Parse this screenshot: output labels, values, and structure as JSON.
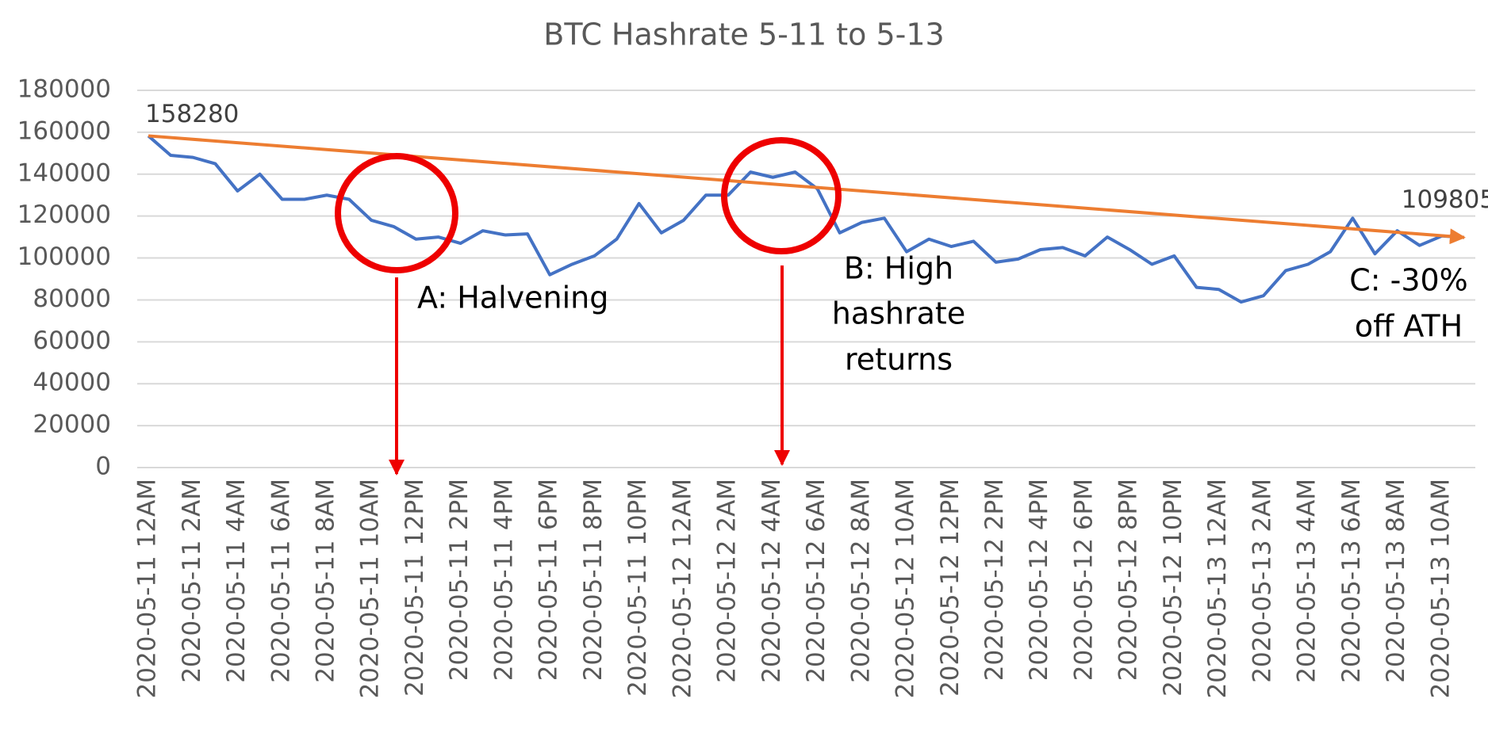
{
  "chart_data": {
    "type": "line",
    "title": "BTC Hashrate 5-11 to 5-13",
    "categories": [
      "2020-05-11 12AM",
      null,
      "2020-05-11 2AM",
      null,
      "2020-05-11 4AM",
      null,
      "2020-05-11 6AM",
      null,
      "2020-05-11 8AM",
      null,
      "2020-05-11 10AM",
      null,
      "2020-05-11 12PM",
      null,
      "2020-05-11 2PM",
      null,
      "2020-05-11 4PM",
      null,
      "2020-05-11 6PM",
      null,
      "2020-05-11 8PM",
      null,
      "2020-05-11 10PM",
      null,
      "2020-05-12 12AM",
      null,
      "2020-05-12 2AM",
      null,
      "2020-05-12 4AM",
      null,
      "2020-05-12 6AM",
      null,
      "2020-05-12 8AM",
      null,
      "2020-05-12 10AM",
      null,
      "2020-05-12 12PM",
      null,
      "2020-05-12 2PM",
      null,
      "2020-05-12 4PM",
      null,
      "2020-05-12 6PM",
      null,
      "2020-05-12 8PM",
      null,
      "2020-05-12 10PM",
      null,
      "2020-05-13 12AM",
      null,
      "2020-05-13 2AM",
      null,
      "2020-05-13 4AM",
      null,
      "2020-05-13 6AM",
      null,
      "2020-05-13 8AM",
      null,
      "2020-05-13 10AM",
      null
    ],
    "series": [
      {
        "color": "#4472c4",
        "values": [
          158280,
          149000,
          148000,
          145000,
          132000,
          140000,
          128000,
          128000,
          130000,
          128000,
          118000,
          115000,
          109000,
          110000,
          107000,
          113000,
          111000,
          111500,
          92000,
          97000,
          101000,
          109000,
          126000,
          112000,
          118000,
          130000,
          130000,
          141000,
          138500,
          141000,
          133000,
          112000,
          117000,
          119000,
          103000,
          109000,
          105500,
          108000,
          98000,
          99500,
          104000,
          105000,
          101000,
          110000,
          104000,
          97000,
          101000,
          86000,
          85000,
          79000,
          82000,
          94000,
          97000,
          103000,
          119000,
          102000,
          113000,
          106000,
          110500,
          109805
        ]
      }
    ],
    "trend_color": "#ed7d31",
    "ylim": [
      0,
      180000
    ],
    "yticks": [
      0,
      20000,
      40000,
      60000,
      80000,
      100000,
      120000,
      140000,
      160000,
      180000
    ],
    "grid": true,
    "annotations": [
      [
        "A: Halvening"
      ],
      [
        "B: High",
        "hashrate",
        "returns"
      ],
      [
        "C: -30%",
        "off ATH"
      ]
    ]
  }
}
